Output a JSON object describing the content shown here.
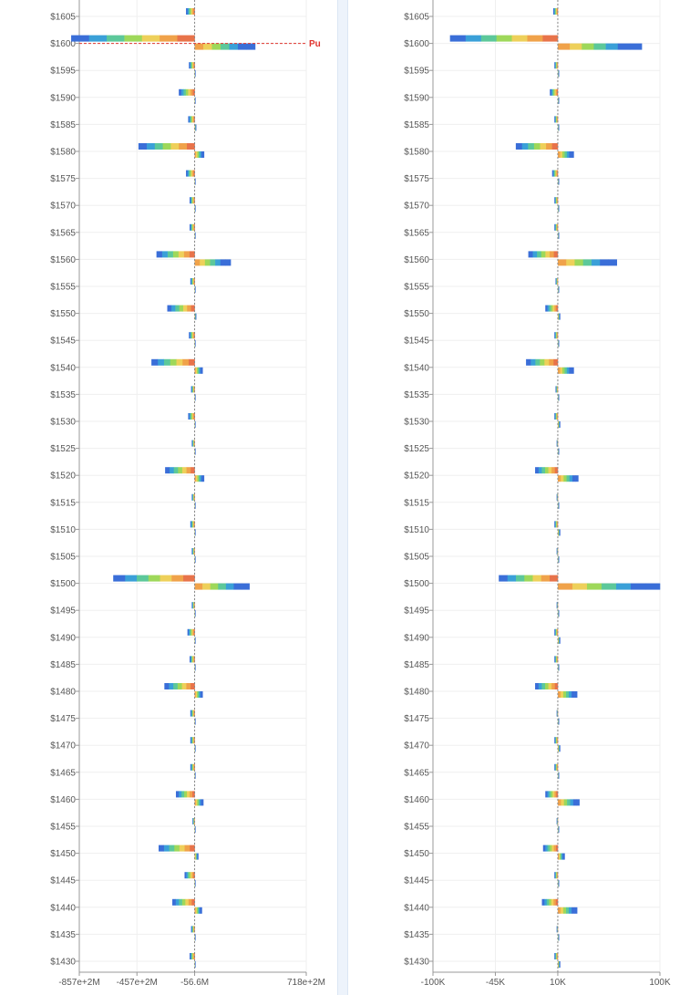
{
  "colors": {
    "grid": "#efefef",
    "axis": "#999999",
    "reference_line": "#e0342e",
    "center_line": "#888888",
    "spectrum": [
      "#e8734a",
      "#f0a24a",
      "#eed05a",
      "#9ed85a",
      "#5cc89a",
      "#3aa0d8",
      "#3a6ed8"
    ]
  },
  "chart_data": [
    {
      "type": "bar",
      "orientation": "horizontal-diverging",
      "xlim": [
        -857,
        718
      ],
      "x_zero": -56.6,
      "x_tick_labels": [
        "-857e+2M",
        "-457e+2M",
        "-56.6M",
        "718e+2M"
      ],
      "x_tick_values": [
        -857,
        -457,
        -56.6,
        718
      ],
      "y_tick_labels": [
        "$1605",
        "$1600",
        "$1595",
        "$1590",
        "$1585",
        "$1580",
        "$1575",
        "$1570",
        "$1565",
        "$1560",
        "$1555",
        "$1550",
        "$1545",
        "$1540",
        "$1535",
        "$1530",
        "$1525",
        "$1520",
        "$1515",
        "$1510",
        "$1505",
        "$1500",
        "$1495",
        "$1490",
        "$1485",
        "$1480",
        "$1475",
        "$1470",
        "$1465",
        "$1460",
        "$1455",
        "$1450",
        "$1445",
        "$1440",
        "$1435",
        "$1430"
      ],
      "reference_line": {
        "label": "Pu",
        "strike": 1600
      },
      "strikes": [
        1605,
        1600,
        1595,
        1590,
        1585,
        1580,
        1575,
        1570,
        1565,
        1560,
        1555,
        1550,
        1545,
        1540,
        1535,
        1530,
        1525,
        1520,
        1515,
        1510,
        1505,
        1500,
        1495,
        1490,
        1485,
        1480,
        1475,
        1470,
        1465,
        1460,
        1455,
        1450,
        1445,
        1440,
        1435,
        1430
      ],
      "left_values": [
        -60,
        -857,
        -40,
        -110,
        -45,
        -390,
        -60,
        -35,
        -35,
        -265,
        -30,
        -190,
        -40,
        -300,
        -25,
        -45,
        -20,
        -205,
        -20,
        -30,
        -20,
        -565,
        -20,
        -50,
        -35,
        -210,
        -30,
        -30,
        -30,
        -130,
        -15,
        -250,
        -70,
        -155,
        -25,
        -35
      ],
      "right_values": [
        0,
        420,
        5,
        5,
        10,
        65,
        5,
        5,
        5,
        250,
        5,
        10,
        5,
        55,
        5,
        5,
        5,
        65,
        5,
        5,
        5,
        380,
        5,
        5,
        5,
        55,
        5,
        5,
        5,
        60,
        5,
        25,
        5,
        50,
        5,
        5
      ]
    },
    {
      "type": "bar",
      "orientation": "horizontal-diverging",
      "xlim": [
        -100,
        100
      ],
      "x_zero": 10,
      "x_tick_labels": [
        "-100K",
        "-45K",
        "10K",
        "100K"
      ],
      "x_tick_values": [
        -100,
        -45,
        10,
        100
      ],
      "y_tick_labels": [
        "$1605",
        "$1600",
        "$1595",
        "$1590",
        "$1585",
        "$1580",
        "$1575",
        "$1570",
        "$1565",
        "$1560",
        "$1555",
        "$1550",
        "$1545",
        "$1540",
        "$1535",
        "$1530",
        "$1525",
        "$1520",
        "$1515",
        "$1510",
        "$1505",
        "$1500",
        "$1495",
        "$1490",
        "$1485",
        "$1480",
        "$1475",
        "$1470",
        "$1465",
        "$1460",
        "$1455",
        "$1450",
        "$1445",
        "$1440",
        "$1435",
        "$1430"
      ],
      "strikes": [
        1605,
        1600,
        1595,
        1590,
        1585,
        1580,
        1575,
        1570,
        1565,
        1560,
        1555,
        1550,
        1545,
        1540,
        1535,
        1530,
        1525,
        1520,
        1515,
        1510,
        1505,
        1500,
        1495,
        1490,
        1485,
        1480,
        1475,
        1470,
        1465,
        1460,
        1455,
        1450,
        1445,
        1440,
        1435,
        1430
      ],
      "left_values": [
        -4,
        -95,
        -3,
        -7,
        -3,
        -37,
        -5,
        -3,
        -3,
        -26,
        -2,
        -11,
        -3,
        -28,
        -2,
        -3,
        -1,
        -20,
        -1,
        -3,
        -1,
        -52,
        -1,
        -3,
        -3,
        -20,
        -1,
        -3,
        -3,
        -11,
        -1,
        -13,
        -3,
        -14,
        -1,
        -3
      ],
      "right_values": [
        0,
        74,
        1,
        1,
        1,
        14,
        1,
        1,
        1,
        52,
        1,
        2,
        1,
        14,
        1,
        2,
        1,
        18,
        1,
        2,
        1,
        90,
        1,
        2,
        1,
        17,
        1,
        2,
        1,
        19,
        1,
        6,
        1,
        17,
        1,
        2
      ]
    }
  ]
}
